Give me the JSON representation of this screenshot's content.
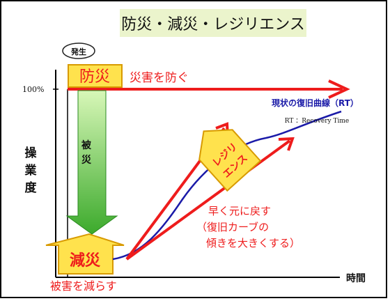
{
  "title": "防災・減災・レジリエンス",
  "hatsusei_label": "発生",
  "bousai_label": "防災",
  "bousai_desc": "災害を防ぐ",
  "percent_label": "100%",
  "y_axis_label_chars": [
    "操",
    "業",
    "度"
  ],
  "x_axis_label": "時間",
  "current_curve_label": "現状の復旧曲線（RT）",
  "rt_note": "RT ：Recovery Time",
  "hisai_chars": [
    "被",
    "災"
  ],
  "gensai_label": "減災",
  "gensai_desc": "被害を減らす",
  "resilience_lines": [
    "レジリ",
    "エンス"
  ],
  "improve_lines": [
    "早く元に戻す",
    "（復旧カーブの",
    "傾きを大きくする）"
  ],
  "colors": {
    "title_bg": "#ebf4cc",
    "red": "#ee1c1c",
    "blue": "#1a1aa8",
    "yellow": "#ffe24d",
    "green_top": "#c6f0a0",
    "green_bottom": "#3caa2c"
  }
}
